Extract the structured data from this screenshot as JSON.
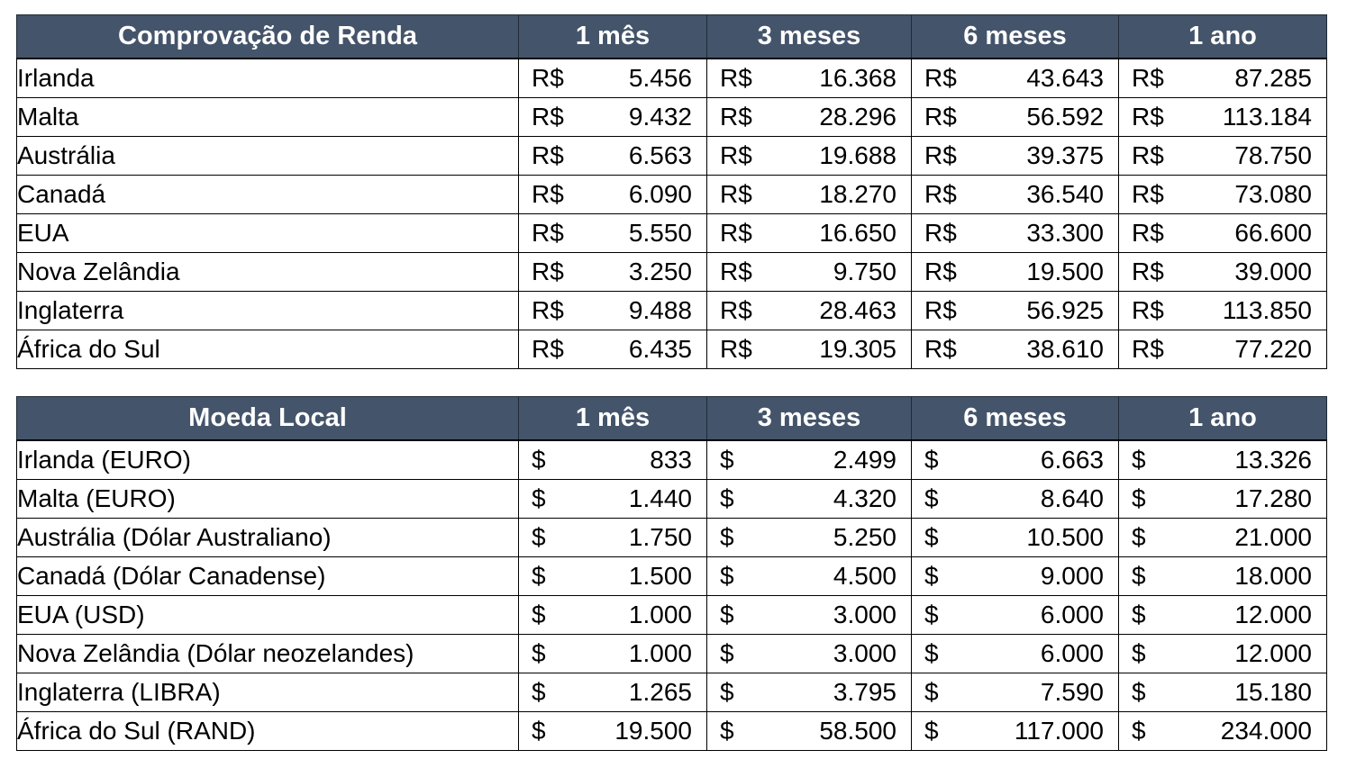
{
  "tables": [
    {
      "id": "renda",
      "headers": [
        "Comprovação de Renda",
        "1 mês",
        "3 meses",
        "6 meses",
        "1 ano"
      ],
      "currency_symbol": "R$",
      "rows": [
        {
          "country": "Irlanda",
          "values": [
            "5.456",
            "16.368",
            "43.643",
            "87.285"
          ]
        },
        {
          "country": "Malta",
          "values": [
            "9.432",
            "28.296",
            "56.592",
            "113.184"
          ]
        },
        {
          "country": "Austrália",
          "values": [
            "6.563",
            "19.688",
            "39.375",
            "78.750"
          ]
        },
        {
          "country": "Canadá",
          "values": [
            "6.090",
            "18.270",
            "36.540",
            "73.080"
          ]
        },
        {
          "country": "EUA",
          "values": [
            "5.550",
            "16.650",
            "33.300",
            "66.600"
          ]
        },
        {
          "country": "Nova Zelândia",
          "values": [
            "3.250",
            "9.750",
            "19.500",
            "39.000"
          ]
        },
        {
          "country": "Inglaterra",
          "values": [
            "9.488",
            "28.463",
            "56.925",
            "113.850"
          ]
        },
        {
          "country": "África do Sul",
          "values": [
            "6.435",
            "19.305",
            "38.610",
            "77.220"
          ]
        }
      ]
    },
    {
      "id": "moeda",
      "headers": [
        "Moeda Local",
        "1 mês",
        "3 meses",
        "6 meses",
        "1 ano"
      ],
      "currency_symbol": "$",
      "rows": [
        {
          "country": "Irlanda (EURO)",
          "values": [
            "833",
            "2.499",
            "6.663",
            "13.326"
          ]
        },
        {
          "country": "Malta (EURO)",
          "values": [
            "1.440",
            "4.320",
            "8.640",
            "17.280"
          ]
        },
        {
          "country": "Austrália (Dólar Australiano)",
          "values": [
            "1.750",
            "5.250",
            "10.500",
            "21.000"
          ]
        },
        {
          "country": "Canadá (Dólar Canadense)",
          "values": [
            "1.500",
            "4.500",
            "9.000",
            "18.000"
          ]
        },
        {
          "country": "EUA (USD)",
          "values": [
            "1.000",
            "3.000",
            "6.000",
            "12.000"
          ]
        },
        {
          "country": "Nova Zelândia (Dólar neozelandes)",
          "values": [
            "1.000",
            "3.000",
            "6.000",
            "12.000"
          ]
        },
        {
          "country": "Inglaterra (LIBRA)",
          "values": [
            "1.265",
            "3.795",
            "7.590",
            "15.180"
          ]
        },
        {
          "country": "África do Sul (RAND)",
          "values": [
            "19.500",
            "58.500",
            "117.000",
            "234.000"
          ]
        }
      ]
    }
  ],
  "colors": {
    "header_bg": "#44546a",
    "header_text": "#ffffff",
    "grid": "#000000"
  }
}
